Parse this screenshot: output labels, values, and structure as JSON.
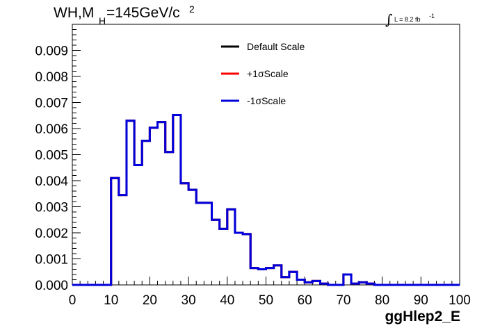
{
  "chart_data": {
    "type": "histogram",
    "title": {
      "main": "WH,M",
      "sub": "H",
      "value": "=145GeV/c",
      "sup": "2"
    },
    "lumi": {
      "integral": "∫",
      "text": "L = 8.2 fb",
      "sup": "-1"
    },
    "xlabel": "ggHlep2_E",
    "ylabel": "",
    "xlim": [
      0,
      100
    ],
    "ylim": [
      0,
      0.01
    ],
    "bin_width": 2,
    "x_ticks": [
      "0",
      "10",
      "20",
      "30",
      "40",
      "50",
      "60",
      "70",
      "80",
      "90",
      "100"
    ],
    "y_ticks": [
      "0.000",
      "0.001",
      "0.002",
      "0.003",
      "0.004",
      "0.005",
      "0.006",
      "0.007",
      "0.008",
      "0.009"
    ],
    "bin_edges": [
      0,
      2,
      4,
      6,
      8,
      10,
      12,
      14,
      16,
      18,
      20,
      22,
      24,
      26,
      28,
      30,
      32,
      34,
      36,
      38,
      40,
      42,
      44,
      46,
      48,
      50,
      52,
      54,
      56,
      58,
      60,
      62,
      64,
      66,
      68,
      70,
      72,
      74,
      76,
      78,
      80,
      82,
      84,
      86,
      88,
      90,
      92,
      94,
      96,
      98,
      100
    ],
    "series": [
      {
        "name": "Default Scale",
        "color": "#000000",
        "values": [
          0,
          0,
          0,
          0,
          0,
          0.0041,
          0.00345,
          0.0063,
          0.0046,
          0.00553,
          0.00603,
          0.00625,
          0.0051,
          0.00652,
          0.0039,
          0.00365,
          0.00315,
          0.00315,
          0.0025,
          0.00215,
          0.0029,
          0.002,
          0.00195,
          0.00065,
          0.0006,
          0.00065,
          0.00075,
          0.0003,
          0.0005,
          0.0002,
          0.0001,
          0.00015,
          5e-05,
          0,
          0,
          0.0004,
          5e-05,
          0.0001,
          5e-05,
          0,
          0,
          0,
          0,
          0,
          0,
          0,
          0,
          0,
          0,
          0
        ]
      },
      {
        "name": "+1σScale",
        "color": "#ff0000",
        "values": [
          0,
          0,
          0,
          0,
          0,
          0.0041,
          0.00345,
          0.0063,
          0.0046,
          0.00553,
          0.00603,
          0.00625,
          0.0051,
          0.00652,
          0.0039,
          0.00365,
          0.00315,
          0.00315,
          0.0025,
          0.00215,
          0.0029,
          0.002,
          0.00195,
          0.00065,
          0.0006,
          0.00065,
          0.00075,
          0.0003,
          0.0005,
          0.0002,
          0.0001,
          0.00015,
          5e-05,
          0,
          0,
          0.0004,
          5e-05,
          0.0001,
          5e-05,
          0,
          0,
          0,
          0,
          0,
          0,
          0,
          0,
          0,
          0,
          0
        ]
      },
      {
        "name": "-1σScale",
        "color": "#0000dd",
        "values": [
          0,
          0,
          0,
          0,
          0,
          0.0041,
          0.00345,
          0.0063,
          0.0046,
          0.00553,
          0.00603,
          0.00625,
          0.0051,
          0.00652,
          0.0039,
          0.00365,
          0.00315,
          0.00315,
          0.0025,
          0.00215,
          0.0029,
          0.002,
          0.00195,
          0.00065,
          0.0006,
          0.00065,
          0.00075,
          0.0003,
          0.0005,
          0.0002,
          0.0001,
          0.00015,
          5e-05,
          0,
          0,
          0.0004,
          5e-05,
          0.0001,
          5e-05,
          0,
          0,
          0,
          0,
          0,
          0,
          0,
          0,
          0,
          0,
          0
        ]
      }
    ],
    "legend_position": "top-center",
    "grid": false
  }
}
